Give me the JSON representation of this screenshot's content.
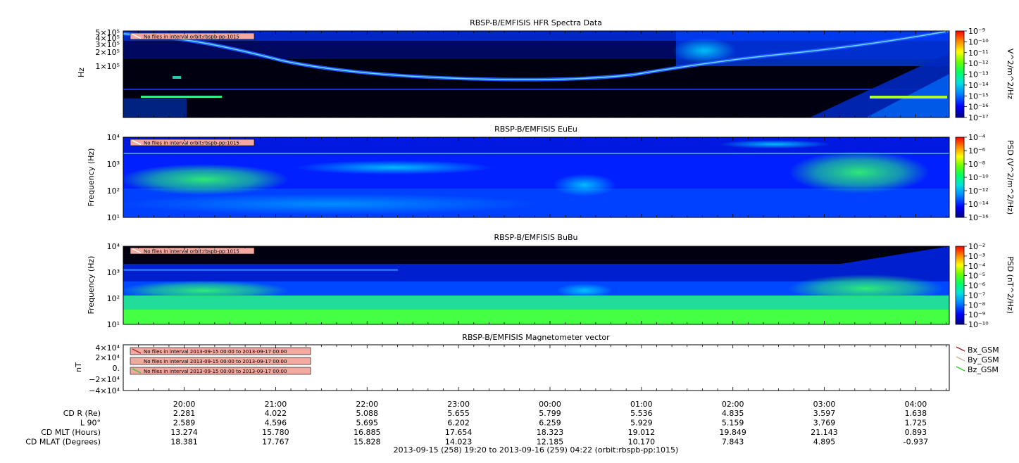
{
  "chart_data": [
    {
      "type": "heatmap",
      "title": "RBSP-B/EMFISIS  HFR Spectra Data",
      "ylabel": "Hz",
      "yscale": "log",
      "ylim": [
        10000,
        500000
      ],
      "y_ticks": [
        "1×10^5",
        "2×10^5",
        "3×10^5",
        "4×10^5",
        "5×10^5"
      ],
      "notice": "No files in interval orbit:rbspb-pp:1015",
      "colorbar": {
        "label": "V^2/m^2/Hz",
        "scale": "log",
        "range": [
          1e-17,
          1e-09
        ],
        "ticks": [
          "10^-9",
          "10^-10",
          "10^-11",
          "10^-12",
          "10^-13",
          "10^-14",
          "10^-15",
          "10^-16",
          "10^-17"
        ]
      }
    },
    {
      "type": "heatmap",
      "title": "RBSP-B/EMFISIS  EuEu",
      "ylabel": "Frequency (Hz)",
      "yscale": "log",
      "ylim": [
        10,
        10000
      ],
      "y_ticks": [
        "10^1",
        "10^2",
        "10^3",
        "10^4"
      ],
      "notice": "No files in interval orbit:rbspb-pp:1015",
      "colorbar": {
        "label": "PSD (V^2/m^2/Hz)",
        "scale": "log",
        "range": [
          1e-16,
          0.0001
        ],
        "ticks": [
          "10^-4",
          "10^-6",
          "10^-8",
          "10^-10",
          "10^-12",
          "10^-14",
          "10^-16"
        ]
      }
    },
    {
      "type": "heatmap",
      "title": "RBSP-B/EMFISIS  BuBu",
      "ylabel": "Frequency (Hz)",
      "yscale": "log",
      "ylim": [
        10,
        10000
      ],
      "y_ticks": [
        "10^1",
        "10^2",
        "10^3",
        "10^4"
      ],
      "notice": "No files in interval orbit:rbspb-pp:1015",
      "colorbar": {
        "label": "PSD (nT^2/Hz)",
        "scale": "log",
        "range": [
          1e-10,
          0.01
        ],
        "ticks": [
          "10^-2",
          "10^-3",
          "10^-4",
          "10^-5",
          "10^-6",
          "10^-7",
          "10^-8",
          "10^-9",
          "10^-10"
        ]
      }
    },
    {
      "type": "line",
      "title": "RBSP-B/EMFISIS  Magnetometer vector",
      "ylabel": "nT",
      "ylim": [
        -40000,
        40000
      ],
      "y_ticks": [
        "4×10^4",
        "2×10^4",
        "0.",
        "-2×10^4",
        "-4×10^4"
      ],
      "series": [
        {
          "name": "Bx_GSM",
          "color": "#a52a2a",
          "values": []
        },
        {
          "name": "By_GSM",
          "color": "#d2b48c",
          "values": []
        },
        {
          "name": "Bz_GSM",
          "color": "#32cd32",
          "values": []
        }
      ],
      "notices": [
        "No files in interval 2013-09-15 00:00 to 2013-09-17 00:00",
        "No files in interval 2013-09-15 00:00 to 2013-09-17 00:00",
        "No files in interval 2013-09-15 00:00 to 2013-09-17 00:00"
      ]
    }
  ],
  "x_axis": {
    "range": [
      "2013-09-15 19:20",
      "2013-09-16 04:22"
    ],
    "ticks": [
      "20:00",
      "21:00",
      "22:00",
      "23:00",
      "00:00",
      "01:00",
      "02:00",
      "03:00",
      "04:00"
    ]
  },
  "ephemeris": [
    {
      "label": "CD R (Re)",
      "values": [
        "2.281",
        "4.022",
        "5.088",
        "5.655",
        "5.799",
        "5.536",
        "4.835",
        "3.597",
        "1.638"
      ]
    },
    {
      "label": "L 90°",
      "values": [
        "2.589",
        "4.596",
        "5.695",
        "6.202",
        "6.259",
        "5.929",
        "5.159",
        "3.769",
        "1.725"
      ]
    },
    {
      "label": "CD MLT (Hours)",
      "values": [
        "13.274",
        "15.780",
        "16.885",
        "17.654",
        "18.323",
        "19.012",
        "19.849",
        "21.143",
        "0.893"
      ]
    },
    {
      "label": "CD MLAT (Degrees)",
      "values": [
        "18.381",
        "17.767",
        "15.828",
        "14.023",
        "12.185",
        "10.170",
        "7.843",
        "4.895",
        "-0.937"
      ]
    }
  ],
  "footer": "2013-09-15 (258) 19:20 to 2013-09-16 (259) 04:22 (orbit:rbspb-pp:1015)"
}
